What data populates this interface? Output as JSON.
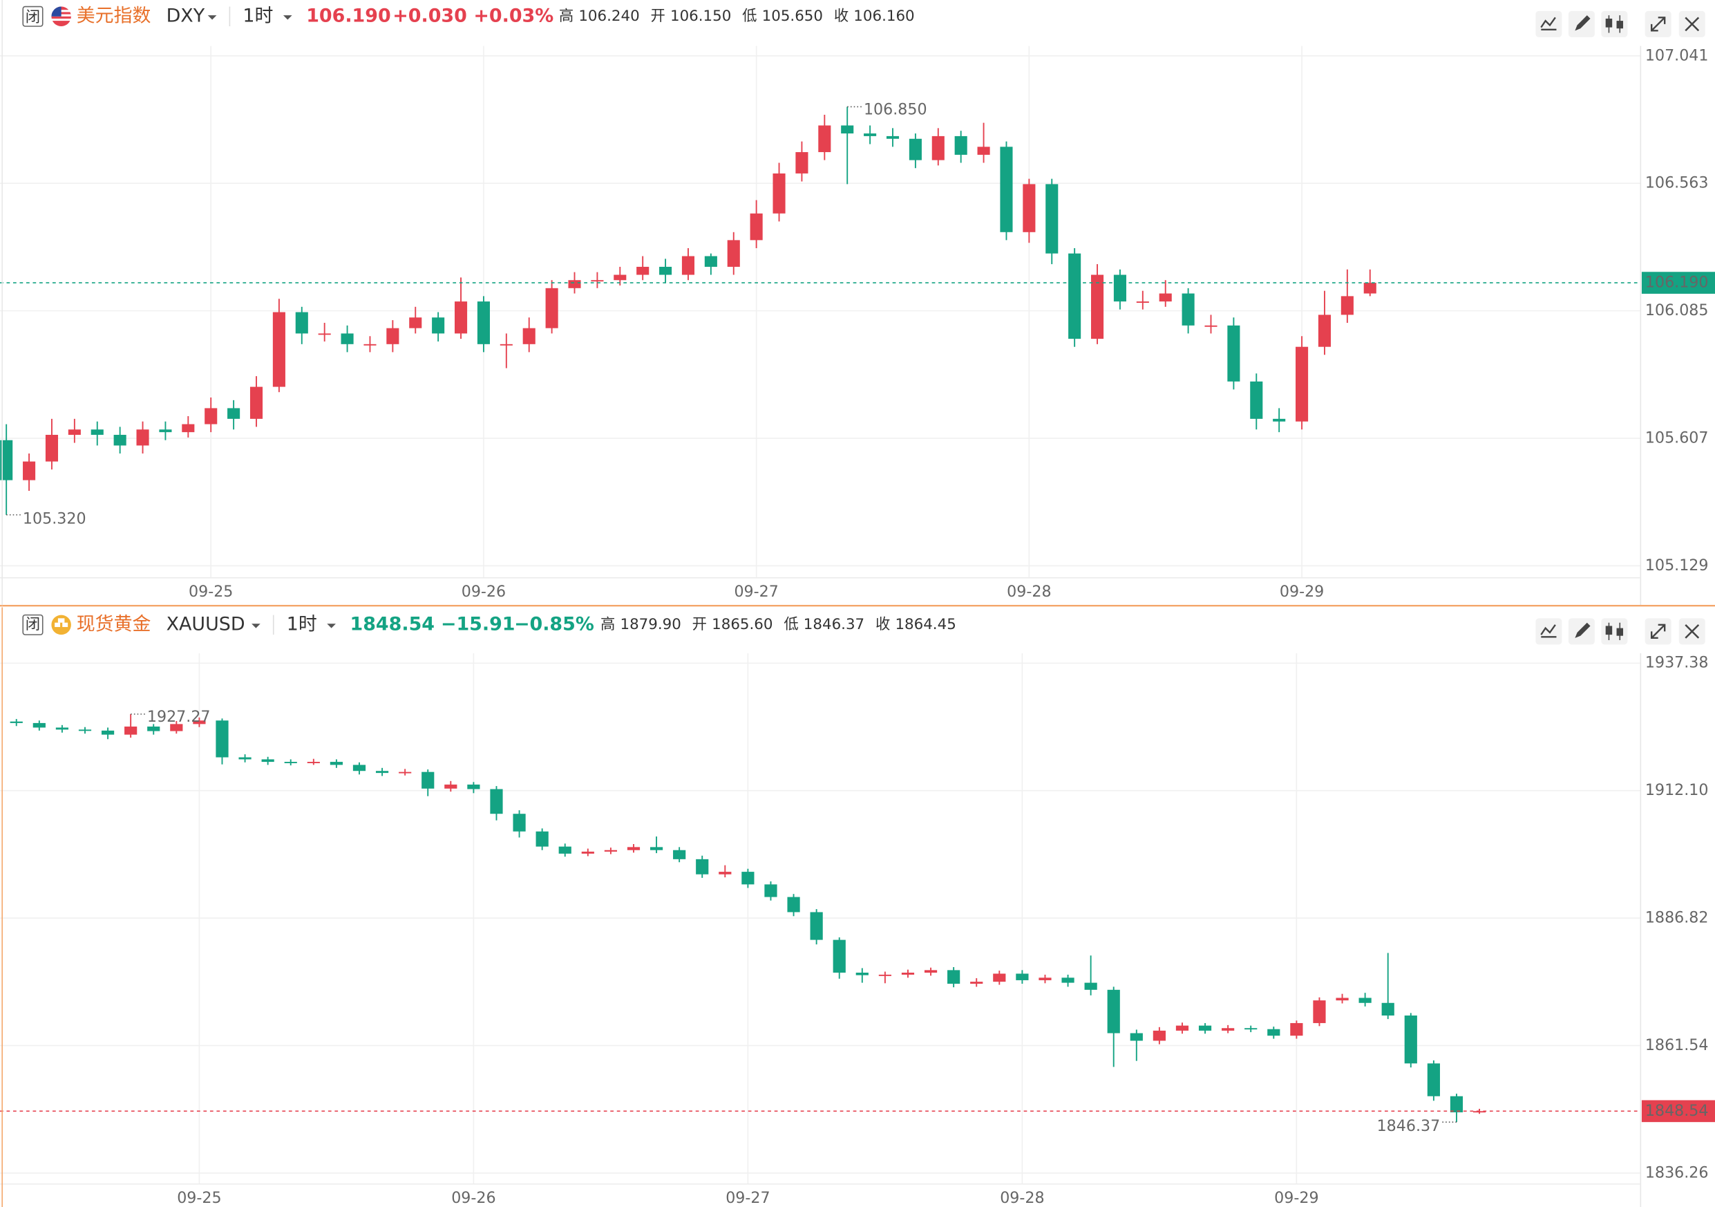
{
  "chart_data": [
    {
      "type": "candlestick",
      "badge": "闭",
      "title": "美元指数",
      "symbol": "DXY",
      "interval": "1时",
      "last": "106.190",
      "change": "+0.030",
      "change_pct": "+0.03%",
      "header_color": "#e5414f",
      "ohlc_labels": [
        "高",
        "开",
        "低",
        "收"
      ],
      "ohlc_values": [
        "106.240",
        "106.150",
        "105.650",
        "106.160"
      ],
      "ohlc_colors": [
        "#e5414f",
        "#14a383",
        "#14a383",
        "#333333"
      ],
      "up_color": "#e5414f",
      "down_color": "#14a383",
      "price_line_color": "#14a383",
      "max_label": "106.850",
      "min_label": "105.320",
      "ylim": [
        105.084,
        107.078
      ],
      "yticks": [
        107.041,
        106.563,
        106.085,
        105.607,
        105.129
      ],
      "ytick_colors": [
        "#e5414f",
        "#e5414f",
        "#14a383",
        "#14a383",
        "#14a383"
      ],
      "categories": [
        null,
        null,
        null,
        null,
        null,
        null,
        null,
        null,
        null,
        "09-25",
        null,
        null,
        null,
        null,
        null,
        null,
        null,
        null,
        null,
        null,
        null,
        "09-26",
        null,
        null,
        null,
        null,
        null,
        null,
        null,
        null,
        null,
        null,
        null,
        "09-27",
        null,
        null,
        null,
        null,
        null,
        null,
        null,
        null,
        null,
        null,
        null,
        "09-28",
        null,
        null,
        null,
        null,
        null,
        null,
        null,
        null,
        null,
        null,
        null,
        "09-29",
        null,
        null,
        null
      ],
      "open": [
        105.6,
        105.45,
        105.52,
        105.62,
        105.64,
        105.62,
        105.58,
        105.64,
        105.63,
        105.66,
        105.72,
        105.68,
        105.8,
        106.08,
        106.0,
        106.0,
        105.96,
        105.96,
        106.02,
        106.06,
        106.0,
        106.12,
        105.96,
        105.96,
        106.02,
        106.17,
        106.2,
        106.2,
        106.22,
        106.25,
        106.22,
        106.29,
        106.25,
        106.35,
        106.45,
        106.6,
        106.68,
        106.78,
        106.75,
        106.74,
        106.73,
        106.65,
        106.74,
        106.67,
        106.7,
        106.38,
        106.56,
        106.3,
        105.98,
        106.22,
        106.12,
        106.12,
        106.15,
        106.03,
        106.03,
        105.82,
        105.68,
        105.67,
        105.95,
        106.07,
        106.15
      ],
      "high": [
        105.66,
        105.55,
        105.68,
        105.68,
        105.67,
        105.65,
        105.67,
        105.67,
        105.69,
        105.76,
        105.75,
        105.84,
        106.13,
        106.1,
        106.04,
        106.03,
        105.99,
        106.05,
        106.1,
        106.08,
        106.21,
        106.14,
        106.0,
        106.06,
        106.2,
        106.23,
        106.23,
        106.25,
        106.29,
        106.28,
        106.32,
        106.3,
        106.38,
        106.5,
        106.64,
        106.72,
        106.82,
        106.85,
        106.78,
        106.77,
        106.75,
        106.77,
        106.76,
        106.79,
        106.72,
        106.58,
        106.58,
        106.32,
        106.26,
        106.24,
        106.16,
        106.2,
        106.17,
        106.07,
        106.06,
        105.85,
        105.72,
        105.99,
        106.16,
        106.24,
        106.24
      ],
      "low": [
        105.32,
        105.41,
        105.49,
        105.59,
        105.58,
        105.55,
        105.55,
        105.6,
        105.61,
        105.63,
        105.64,
        105.65,
        105.78,
        105.96,
        105.97,
        105.93,
        105.93,
        105.93,
        106.0,
        105.97,
        105.98,
        105.93,
        105.87,
        105.93,
        106.0,
        106.15,
        106.17,
        106.18,
        106.2,
        106.19,
        106.2,
        106.22,
        106.22,
        106.32,
        106.42,
        106.57,
        106.65,
        106.56,
        106.71,
        106.7,
        106.62,
        106.63,
        106.64,
        106.64,
        106.35,
        106.34,
        106.26,
        105.95,
        105.96,
        106.09,
        106.09,
        106.1,
        106.0,
        106.0,
        105.79,
        105.64,
        105.63,
        105.64,
        105.92,
        106.04,
        106.14
      ],
      "close": [
        105.45,
        105.52,
        105.62,
        105.64,
        105.62,
        105.58,
        105.64,
        105.63,
        105.66,
        105.72,
        105.68,
        105.8,
        106.08,
        106.0,
        106.0,
        105.96,
        105.96,
        106.02,
        106.06,
        106.0,
        106.12,
        105.96,
        105.96,
        106.02,
        106.17,
        106.2,
        106.2,
        106.22,
        106.25,
        106.22,
        106.29,
        106.25,
        106.35,
        106.45,
        106.6,
        106.68,
        106.78,
        106.75,
        106.74,
        106.73,
        106.65,
        106.74,
        106.67,
        106.7,
        106.38,
        106.56,
        106.3,
        105.98,
        106.22,
        106.12,
        106.12,
        106.15,
        106.03,
        106.03,
        105.82,
        105.68,
        105.67,
        105.95,
        106.07,
        106.14,
        106.19
      ]
    },
    {
      "type": "candlestick",
      "badge": "闭",
      "title": "现货黄金",
      "symbol": "XAUUSD",
      "interval": "1时",
      "last": "1848.54",
      "change": "−15.91",
      "change_pct": "−0.85%",
      "header_color": "#14a383",
      "ohlc_labels": [
        "高",
        "开",
        "低",
        "收"
      ],
      "ohlc_values": [
        "1879.90",
        "1865.60",
        "1846.37",
        "1864.45"
      ],
      "ohlc_colors": [
        "#e5414f",
        "#e5414f",
        "#14a383",
        "#333333"
      ],
      "up_color": "#e5414f",
      "down_color": "#14a383",
      "price_line_color": "#e5414f",
      "max_label": "1927.27",
      "min_label": "1846.37",
      "ylim": [
        1834.09,
        1939.33
      ],
      "yticks": [
        1937.38,
        {
          "value": 1912.1,
          "label": "1912.10"
        },
        1886.82,
        1861.54,
        1836.26
      ],
      "ytick_colors": [
        "#e5414f",
        "#e5414f",
        "#e5414f",
        "#14a383",
        "#14a383"
      ],
      "categories": [
        null,
        null,
        null,
        null,
        null,
        null,
        null,
        null,
        "09-25",
        null,
        null,
        null,
        null,
        null,
        null,
        null,
        null,
        null,
        null,
        null,
        "09-26",
        null,
        null,
        null,
        null,
        null,
        null,
        null,
        null,
        null,
        null,
        null,
        "09-27",
        null,
        null,
        null,
        null,
        null,
        null,
        null,
        null,
        null,
        null,
        null,
        "09-28",
        null,
        null,
        null,
        null,
        null,
        null,
        null,
        null,
        null,
        null,
        null,
        "09-29",
        null,
        null,
        null,
        null,
        null,
        null,
        null,
        null
      ],
      "open": [
        1925.8,
        1925.5,
        1924.6,
        1924.2,
        1924.0,
        1923.2,
        1924.8,
        1923.9,
        1925.3,
        1926.0,
        1918.7,
        1918.3,
        1917.8,
        1917.7,
        1917.8,
        1917.2,
        1916.0,
        1915.6,
        1915.8,
        1912.5,
        1913.3,
        1912.4,
        1907.5,
        1904.0,
        1901.0,
        1899.6,
        1900.0,
        1900.3,
        1900.9,
        1900.3,
        1898.5,
        1895.5,
        1896.0,
        1893.5,
        1891.0,
        1888.0,
        1882.5,
        1876.0,
        1875.5,
        1875.6,
        1876.0,
        1876.5,
        1873.8,
        1874.2,
        1875.8,
        1874.5,
        1875.0,
        1874.0,
        1872.6,
        1864.0,
        1862.5,
        1864.5,
        1865.5,
        1864.5,
        1865.0,
        1864.8,
        1863.5,
        1866.0,
        1870.5,
        1871.0,
        1870.0,
        1867.5,
        1858.0,
        1851.5,
        1848.4
      ],
      "high": [
        1926.3,
        1926.0,
        1925.1,
        1924.7,
        1924.6,
        1927.27,
        1925.3,
        1925.9,
        1926.6,
        1926.4,
        1919.3,
        1918.8,
        1918.3,
        1918.4,
        1918.3,
        1917.7,
        1916.6,
        1916.4,
        1916.3,
        1914.0,
        1913.8,
        1913.0,
        1908.2,
        1904.6,
        1901.6,
        1900.6,
        1900.8,
        1901.5,
        1903.0,
        1900.9,
        1899.2,
        1897.3,
        1896.6,
        1894.1,
        1891.6,
        1888.6,
        1883.0,
        1876.9,
        1876.2,
        1876.6,
        1877.0,
        1877.1,
        1874.9,
        1876.4,
        1876.5,
        1875.6,
        1875.6,
        1879.4,
        1873.2,
        1864.7,
        1865.2,
        1866.1,
        1866.0,
        1865.6,
        1865.5,
        1865.3,
        1866.5,
        1871.1,
        1871.8,
        1872.0,
        1879.9,
        1868.0,
        1858.6,
        1852.0,
        1849.0
      ],
      "low": [
        1924.9,
        1924.0,
        1923.6,
        1923.4,
        1922.3,
        1922.6,
        1923.2,
        1923.4,
        1924.7,
        1917.3,
        1917.7,
        1917.2,
        1917.1,
        1917.2,
        1916.6,
        1915.3,
        1915.0,
        1915.1,
        1911.0,
        1911.9,
        1911.6,
        1906.2,
        1902.8,
        1900.3,
        1899.0,
        1899.1,
        1899.5,
        1899.8,
        1899.7,
        1897.9,
        1894.8,
        1894.9,
        1892.8,
        1890.3,
        1887.2,
        1881.6,
        1874.8,
        1874.0,
        1873.9,
        1875.0,
        1875.4,
        1873.1,
        1873.2,
        1873.6,
        1873.8,
        1873.9,
        1873.2,
        1871.5,
        1857.3,
        1858.5,
        1861.8,
        1863.9,
        1863.9,
        1864.0,
        1864.2,
        1862.9,
        1862.9,
        1865.4,
        1869.9,
        1869.3,
        1866.8,
        1857.2,
        1850.6,
        1846.37,
        1848.0
      ],
      "close": [
        1925.5,
        1924.6,
        1924.2,
        1924.0,
        1923.2,
        1924.8,
        1923.9,
        1925.3,
        1926.0,
        1918.7,
        1918.3,
        1917.8,
        1917.7,
        1917.8,
        1917.2,
        1916.0,
        1915.6,
        1915.8,
        1912.5,
        1913.3,
        1912.4,
        1907.5,
        1904.0,
        1901.0,
        1899.6,
        1900.0,
        1900.3,
        1900.9,
        1900.3,
        1898.5,
        1895.5,
        1896.0,
        1893.5,
        1891.0,
        1888.0,
        1882.5,
        1876.0,
        1875.5,
        1875.6,
        1876.0,
        1876.5,
        1873.8,
        1874.2,
        1875.8,
        1874.5,
        1875.0,
        1874.0,
        1872.6,
        1864.0,
        1862.5,
        1864.5,
        1865.5,
        1864.5,
        1865.0,
        1864.8,
        1863.5,
        1866.0,
        1870.5,
        1871.0,
        1870.0,
        1867.5,
        1858.0,
        1851.5,
        1848.3,
        1848.54
      ]
    }
  ]
}
